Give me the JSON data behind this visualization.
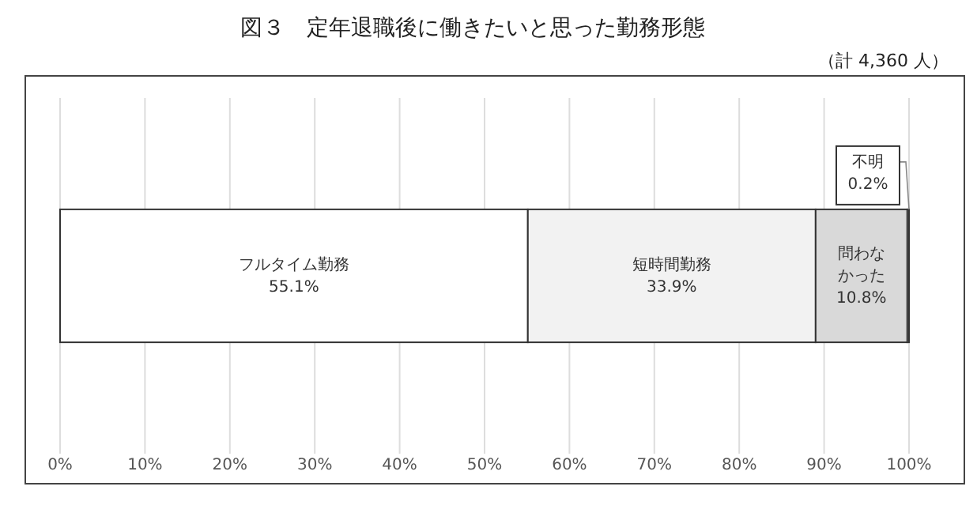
{
  "chart_data": {
    "type": "bar",
    "orientation": "horizontal",
    "stacked": true,
    "title": "図３　定年退職後に働きたいと思った勤務形態",
    "annotations": [
      "（計 4,360 人）"
    ],
    "categories": [
      null
    ],
    "series": [
      {
        "name": "フルタイム勤務",
        "color": "#ffffff",
        "values": [
          55.1
        ],
        "value_labels": [
          "55.1%"
        ]
      },
      {
        "name": "短時間勤務",
        "color": "#f2f2f2",
        "values": [
          33.9
        ],
        "value_labels": [
          "33.9%"
        ]
      },
      {
        "name": "問わなかった",
        "color": "#d9d9d9",
        "values": [
          10.8
        ],
        "value_labels": [
          "10.8%"
        ]
      },
      {
        "name": "不明",
        "color": "#ffffff",
        "values": [
          0.2
        ],
        "value_labels": [
          "0.2%"
        ]
      }
    ],
    "xlim": [
      0,
      100
    ],
    "xticks": [
      {
        "value": 0,
        "label": "0%"
      },
      {
        "value": 10,
        "label": "10%"
      },
      {
        "value": 20,
        "label": "20%"
      },
      {
        "value": 30,
        "label": "30%"
      },
      {
        "value": 40,
        "label": "40%"
      },
      {
        "value": 50,
        "label": "50%"
      },
      {
        "value": 60,
        "label": "60%"
      },
      {
        "value": 70,
        "label": "70%"
      },
      {
        "value": 80,
        "label": "80%"
      },
      {
        "value": 90,
        "label": "90%"
      },
      {
        "value": 100,
        "label": "100%"
      }
    ],
    "grid": "x"
  }
}
